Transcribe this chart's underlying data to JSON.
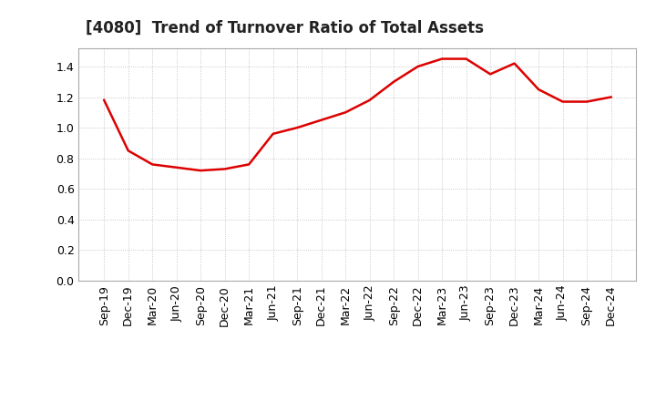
{
  "title": "[4080]  Trend of Turnover Ratio of Total Assets",
  "line_color": "#dd0000",
  "line_width": 1.8,
  "background_color": "#ffffff",
  "grid_color": "#bbbbbb",
  "ylim": [
    0.0,
    1.52
  ],
  "yticks": [
    0.0,
    0.2,
    0.4,
    0.6,
    0.8,
    1.0,
    1.2,
    1.4
  ],
  "x_labels": [
    "Sep-19",
    "Dec-19",
    "Mar-20",
    "Jun-20",
    "Sep-20",
    "Dec-20",
    "Mar-21",
    "Jun-21",
    "Sep-21",
    "Dec-21",
    "Mar-22",
    "Jun-22",
    "Sep-22",
    "Dec-22",
    "Mar-23",
    "Jun-23",
    "Sep-23",
    "Dec-23",
    "Mar-24",
    "Jun-24",
    "Sep-24",
    "Dec-24"
  ],
  "values": [
    1.18,
    0.85,
    0.76,
    0.74,
    0.72,
    0.73,
    0.76,
    0.96,
    1.0,
    1.05,
    1.1,
    1.18,
    1.3,
    1.4,
    1.45,
    1.45,
    1.35,
    1.42,
    1.25,
    1.17,
    1.17,
    1.2
  ],
  "title_fontsize": 12,
  "tick_fontsize": 9
}
